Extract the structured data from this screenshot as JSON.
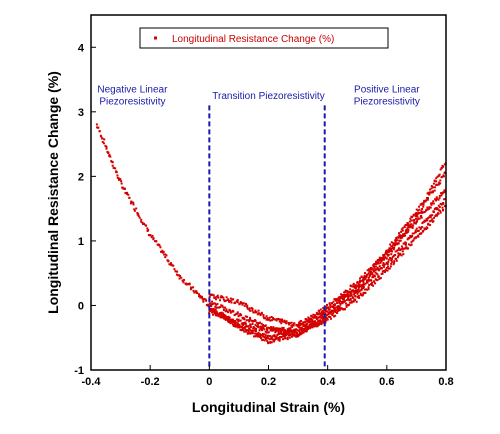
{
  "chart_data": {
    "type": "scatter",
    "xlabel": "Longitudinal Strain (%)",
    "ylabel": "Longitudinal Resistance Change (%)",
    "xlim": [
      -0.4,
      0.8
    ],
    "ylim": [
      -1,
      4.5
    ],
    "xticks": [
      "-0.4",
      "-0.2",
      "0",
      "0.2",
      "0.4",
      "0.6",
      "0.8"
    ],
    "yticks": [
      "-1",
      "0",
      "1",
      "2",
      "3",
      "4"
    ],
    "legend": {
      "label": "Longitudinal Resistance Change (%)",
      "placement": "top-center"
    },
    "grid": false,
    "vlines": [
      {
        "x": 0.0,
        "color": "#1a1aa8",
        "style": "dashed"
      },
      {
        "x": 0.39,
        "color": "#1a1aa8",
        "style": "dashed"
      }
    ],
    "annotations": [
      {
        "lines": [
          "Negative Linear",
          "Piezoresistivity"
        ],
        "x": -0.26,
        "y": 3.3
      },
      {
        "lines": [
          "Transition Piezoresistivity"
        ],
        "x": 0.2,
        "y": 3.2
      },
      {
        "lines": [
          "Positive Linear",
          "Piezoresistivity"
        ],
        "x": 0.6,
        "y": 3.3
      }
    ],
    "series": [
      {
        "color": "#d40000",
        "curves": [
          {
            "x": [
              -0.38,
              -0.3,
              -0.2,
              -0.1,
              0.0,
              0.1,
              0.2,
              0.3,
              0.39,
              0.5,
              0.6,
              0.7,
              0.8
            ],
            "y": [
              2.8,
              1.9,
              1.1,
              0.45,
              0.0,
              -0.35,
              -0.55,
              -0.45,
              -0.15,
              0.25,
              0.75,
              1.35,
              2.25
            ]
          },
          {
            "x": [
              0.0,
              0.1,
              0.2,
              0.3,
              0.39,
              0.5,
              0.6,
              0.7,
              0.8
            ],
            "y": [
              -0.1,
              -0.25,
              -0.4,
              -0.35,
              -0.1,
              0.3,
              0.85,
              1.45,
              2.05
            ]
          },
          {
            "x": [
              0.0,
              0.1,
              0.2,
              0.3,
              0.39,
              0.5,
              0.6,
              0.7,
              0.8
            ],
            "y": [
              0.15,
              0.05,
              -0.2,
              -0.3,
              -0.05,
              0.35,
              0.8,
              1.3,
              1.8
            ]
          },
          {
            "x": [
              0.0,
              0.1,
              0.2,
              0.3,
              0.39,
              0.5,
              0.6,
              0.7,
              0.8
            ],
            "y": [
              0.05,
              -0.15,
              -0.35,
              -0.45,
              -0.2,
              0.2,
              0.65,
              1.15,
              1.65
            ]
          },
          {
            "x": [
              0.0,
              0.1,
              0.2,
              0.3,
              0.39,
              0.5,
              0.6,
              0.7,
              0.8
            ],
            "y": [
              -0.05,
              -0.3,
              -0.5,
              -0.4,
              -0.25,
              0.1,
              0.55,
              1.05,
              1.55
            ]
          }
        ]
      }
    ]
  }
}
